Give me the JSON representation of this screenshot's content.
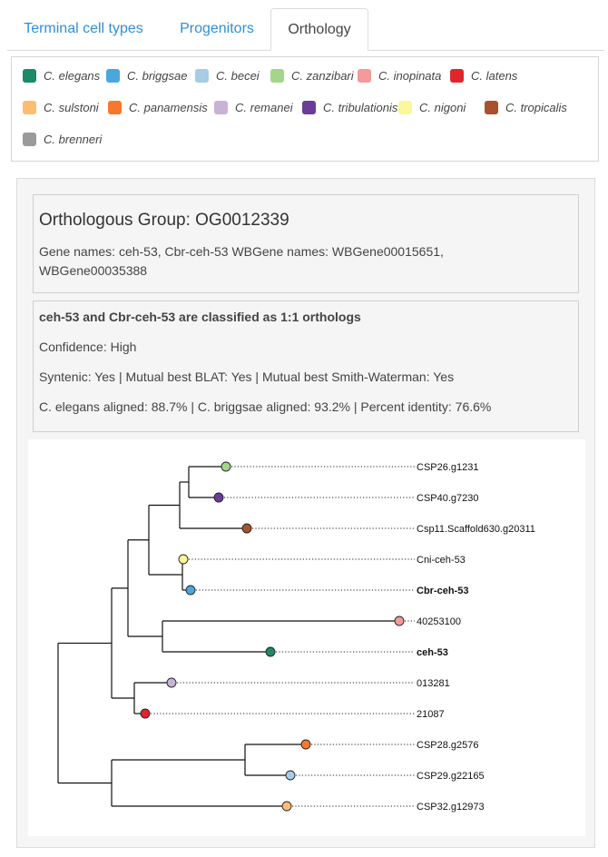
{
  "tabs": [
    {
      "label": "Terminal cell types",
      "active": false
    },
    {
      "label": "Progenitors",
      "active": false
    },
    {
      "label": "Orthology",
      "active": true
    }
  ],
  "legend": [
    {
      "name": "C. elegans",
      "color": "#1b8a65"
    },
    {
      "name": "C. briggsae",
      "color": "#4aa7de"
    },
    {
      "name": "C. becei",
      "color": "#a6cde3"
    },
    {
      "name": "C. zanzibari",
      "color": "#a3d68a"
    },
    {
      "name": "C. inopinata",
      "color": "#f39a9a"
    },
    {
      "name": "C. latens",
      "color": "#e0262b"
    },
    {
      "name": "C. sulstoni",
      "color": "#fbbd72"
    },
    {
      "name": "C. panamensis",
      "color": "#f6792b"
    },
    {
      "name": "C. remanei",
      "color": "#c8b2d6"
    },
    {
      "name": "C. tribulationis",
      "color": "#6a3d98"
    },
    {
      "name": "C. nigoni",
      "color": "#fbf79b"
    },
    {
      "name": "C. tropicalis",
      "color": "#a8512c"
    },
    {
      "name": "C. brenneri",
      "color": "#9a9a9a"
    }
  ],
  "group": {
    "title": "Orthologous Group: OG0012339",
    "gene_names": "Gene names: ceh-53, Cbr-ceh-53 WBGene names: WBGene00015651, WBGene00035388"
  },
  "classification": {
    "heading": "ceh-53 and Cbr-ceh-53 are classified as 1:1 orthologs",
    "confidence": "Confidence: High",
    "synteny": "Syntenic: Yes | Mutual best BLAT: Yes | Mutual best Smith-Waterman: Yes",
    "alignment": "C. elegans aligned: 88.7% | C. briggsae aligned: 93.2% | Percent identity: 76.6%"
  },
  "tree": {
    "leaves": [
      {
        "label": "CSP26.g1231",
        "species": "C. zanzibari",
        "color": "#a3d68a",
        "bold": false
      },
      {
        "label": "CSP40.g7230",
        "species": "C. tribulationis",
        "color": "#6a3d98",
        "bold": false
      },
      {
        "label": "Csp11.Scaffold630.g20311",
        "species": "C. tropicalis",
        "color": "#a8512c",
        "bold": false
      },
      {
        "label": "Cni-ceh-53",
        "species": "C. nigoni",
        "color": "#fbf79b",
        "bold": false
      },
      {
        "label": "Cbr-ceh-53",
        "species": "C. briggsae",
        "color": "#4aa7de",
        "bold": true
      },
      {
        "label": "40253100",
        "species": "C. inopinata",
        "color": "#f39a9a",
        "bold": false
      },
      {
        "label": "ceh-53",
        "species": "C. elegans",
        "color": "#1b8a65",
        "bold": true
      },
      {
        "label": "013281",
        "species": "C. remanei",
        "color": "#c8b2d6",
        "bold": false
      },
      {
        "label": "21087",
        "species": "C. latens",
        "color": "#e0262b",
        "bold": false
      },
      {
        "label": "CSP28.g2576",
        "species": "C. panamensis",
        "color": "#f6792b",
        "bold": false
      },
      {
        "label": "CSP29.g22165",
        "species": "C. becei",
        "color": "#a6cde3",
        "bold": false
      },
      {
        "label": "CSP32.g12973",
        "species": "C. sulstoni",
        "color": "#fbbd72",
        "bold": false
      }
    ]
  }
}
